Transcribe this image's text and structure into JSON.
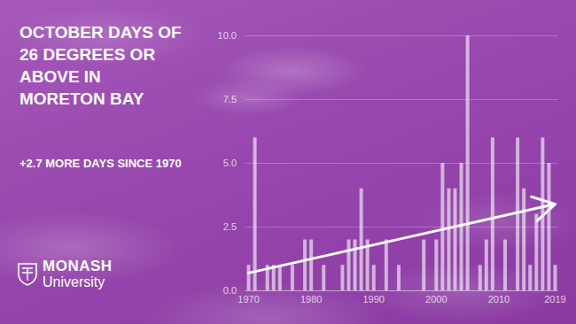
{
  "chart_data": {
    "type": "bar",
    "title": "OCTOBER DAYS OF 26 DEGREES OR ABOVE IN MORETON BAY",
    "subtitle": "+2.7 MORE DAYS SINCE 1970",
    "logo": [
      "MONASH",
      "University"
    ],
    "x": [
      1970,
      1971,
      1972,
      1973,
      1974,
      1975,
      1976,
      1977,
      1978,
      1979,
      1980,
      1981,
      1982,
      1983,
      1984,
      1985,
      1986,
      1987,
      1988,
      1989,
      1990,
      1991,
      1992,
      1993,
      1994,
      1995,
      1996,
      1997,
      1998,
      1999,
      2000,
      2001,
      2002,
      2003,
      2004,
      2005,
      2006,
      2007,
      2008,
      2009,
      2010,
      2011,
      2012,
      2013,
      2014,
      2015,
      2016,
      2017,
      2018,
      2019
    ],
    "values": [
      1,
      6,
      0,
      1,
      1,
      1,
      0,
      1,
      0,
      2,
      2,
      0,
      1,
      0,
      0,
      1,
      2,
      2,
      4,
      2,
      1,
      0,
      2,
      0,
      1,
      0,
      0,
      0,
      2,
      0,
      2,
      5,
      4,
      4,
      5,
      10,
      0,
      1,
      2,
      6,
      0,
      2,
      0,
      6,
      4,
      1,
      3,
      6,
      5,
      1
    ],
    "color": "#ffffff",
    "xlim": [
      1969.5,
      2019.5
    ],
    "xticks": [
      1970,
      1980,
      1990,
      2000,
      2010,
      2019
    ],
    "ylim": [
      0,
      10
    ],
    "yticks": [
      {
        "value": 0,
        "label": "0.0"
      },
      2.5,
      {
        "value": 5,
        "label": "5.0"
      },
      7.5,
      {
        "value": 10,
        "label": "10.0"
      }
    ],
    "grid": true,
    "trend": {
      "x": [
        1970,
        2019
      ],
      "y": [
        0.7,
        3.4
      ]
    }
  }
}
